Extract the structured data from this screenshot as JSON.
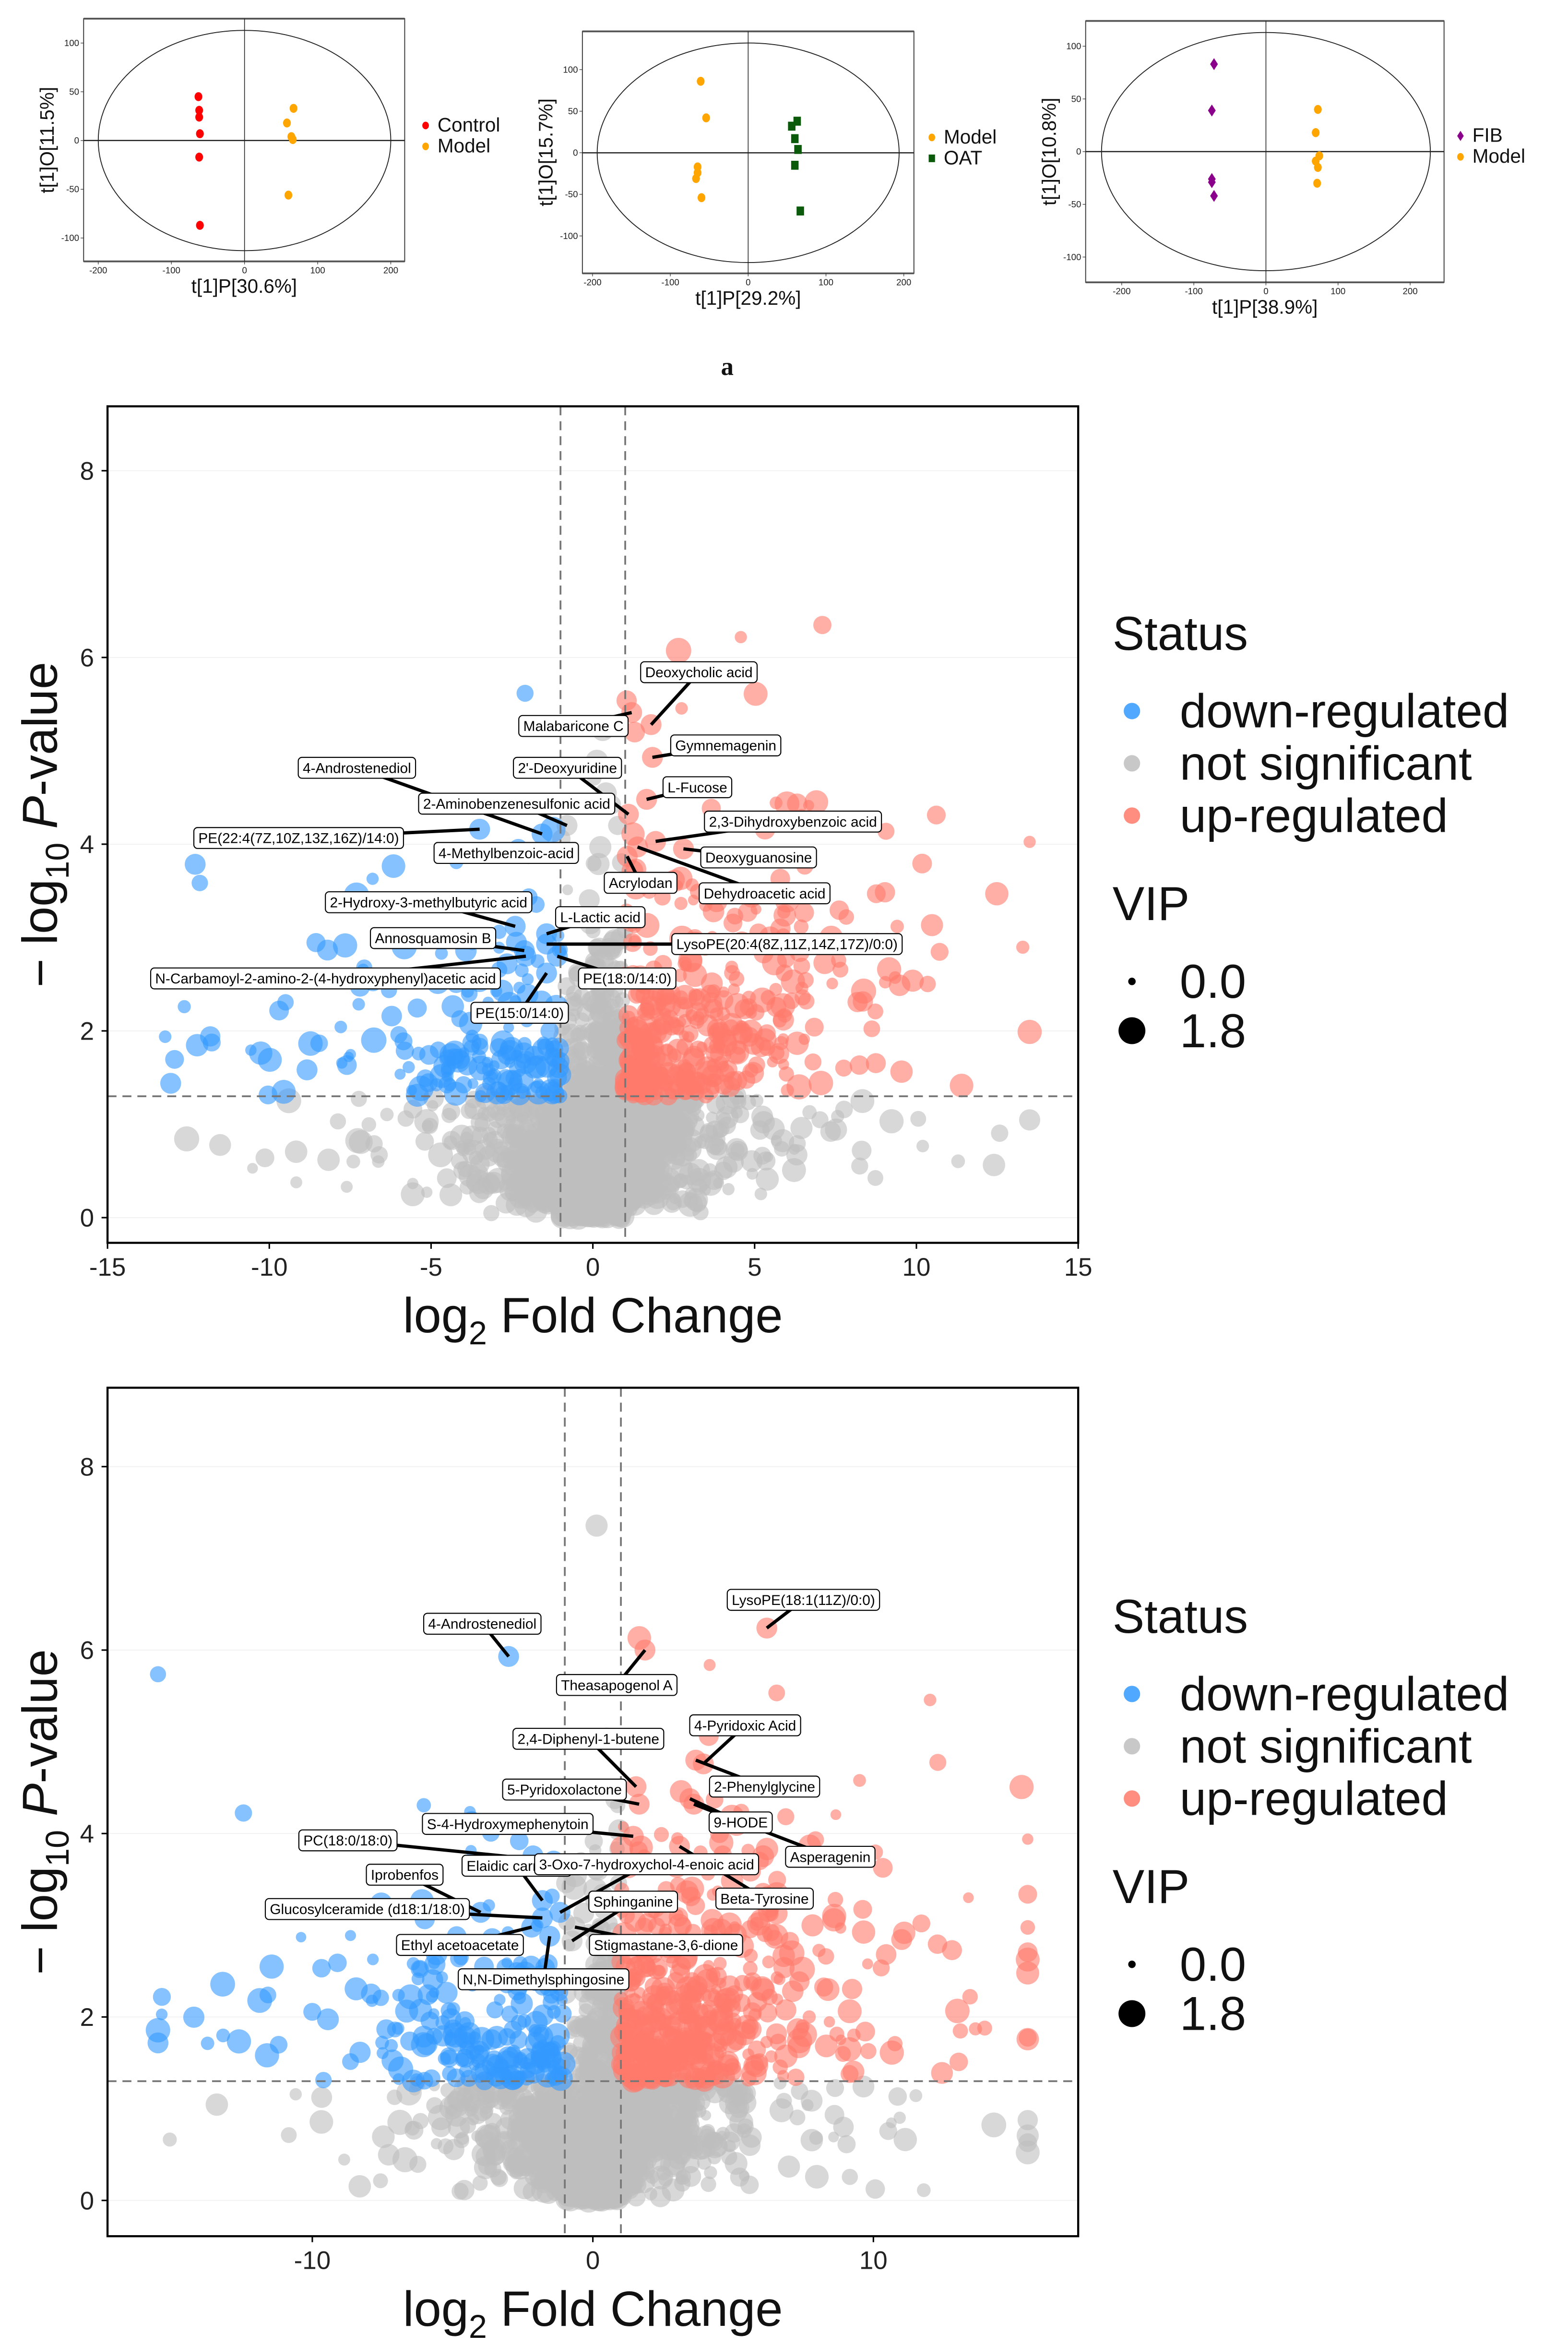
{
  "panel_letter": "a",
  "colors": {
    "control": "#FF0000",
    "model": "#FFA500",
    "oat": "#0B5A0B",
    "fib": "#8B008B",
    "down": "#3399FF",
    "up": "#FF7A6B",
    "ns": "#BEBEBE"
  },
  "chart_data": [
    {
      "type": "scatter",
      "title": "",
      "xlabel": "t[1]P[30.6%]",
      "ylabel": "t[1]O[11.5%]",
      "xlim": [
        -220,
        219
      ],
      "ylim": [
        -124,
        125
      ],
      "xticks": [
        -200,
        -100,
        0,
        100,
        200
      ],
      "yticks": [
        -100,
        -50,
        0,
        50,
        100
      ],
      "ellipse": {
        "rx": 200,
        "ry": 113
      },
      "legend_position": "right",
      "series": [
        {
          "name": "Control",
          "color_key": "control",
          "marker": "circle",
          "points": [
            [
              -63,
              45
            ],
            [
              -62,
              31
            ],
            [
              -62,
              24
            ],
            [
              -61,
              7
            ],
            [
              -62,
              -17
            ],
            [
              -61,
              -87
            ]
          ]
        },
        {
          "name": "Model",
          "color_key": "model",
          "marker": "circle",
          "points": [
            [
              67,
              33
            ],
            [
              58,
              18
            ],
            [
              64,
              4
            ],
            [
              66,
              1
            ],
            [
              60,
              -56
            ]
          ]
        }
      ]
    },
    {
      "type": "scatter",
      "title": "",
      "xlabel": "t[1]P[29.2%]",
      "ylabel": "t[1]O[15.7%]",
      "xlim": [
        -213,
        213
      ],
      "ylim": [
        -145,
        146
      ],
      "xticks": [
        -200,
        -100,
        0,
        100,
        200
      ],
      "yticks": [
        -100,
        -50,
        0,
        50,
        100
      ],
      "ellipse": {
        "rx": 194,
        "ry": 132
      },
      "legend_position": "right",
      "series": [
        {
          "name": "Model",
          "color_key": "model",
          "marker": "circle",
          "points": [
            [
              -61,
              86
            ],
            [
              -54,
              42
            ],
            [
              -65,
              -17
            ],
            [
              -65,
              -24
            ],
            [
              -67,
              -31
            ],
            [
              -60,
              -54
            ]
          ]
        },
        {
          "name": "OAT",
          "color_key": "oat",
          "marker": "square",
          "points": [
            [
              63,
              38
            ],
            [
              56,
              32
            ],
            [
              60,
              17
            ],
            [
              64,
              4
            ],
            [
              60,
              -15
            ],
            [
              67,
              -70
            ]
          ]
        }
      ]
    },
    {
      "type": "scatter",
      "title": "",
      "xlabel": "t[1]P[38.9%]",
      "ylabel": "t[1]O[10.8%]",
      "xlim": [
        -250,
        247
      ],
      "ylim": [
        -124,
        124
      ],
      "xticks": [
        -200,
        -100,
        0,
        100,
        200
      ],
      "yticks": [
        -100,
        -50,
        0,
        50,
        100
      ],
      "ellipse": {
        "rx": 228,
        "ry": 113
      },
      "legend_position": "right",
      "series": [
        {
          "name": "FIB",
          "color_key": "fib",
          "marker": "diamond",
          "points": [
            [
              -72,
              83
            ],
            [
              -75,
              39
            ],
            [
              -75,
              -26
            ],
            [
              -75,
              -29
            ],
            [
              -72,
              -42
            ]
          ]
        },
        {
          "name": "Model",
          "color_key": "model",
          "marker": "circle",
          "points": [
            [
              72,
              40
            ],
            [
              69,
              18
            ],
            [
              74,
              -4
            ],
            [
              69,
              -9
            ],
            [
              72,
              -15
            ],
            [
              71,
              -30
            ]
          ]
        }
      ]
    },
    {
      "type": "scatter",
      "title": "",
      "xlabel_parts": [
        "log",
        "2",
        " Fold Change"
      ],
      "ylabel_parts": [
        "− log",
        "10",
        " ",
        "P",
        "-value"
      ],
      "xlim": [
        -15,
        15
      ],
      "ylim": [
        -0.27,
        8.69
      ],
      "xticks": [
        -15,
        -10,
        -5,
        0,
        5,
        10,
        15
      ],
      "yticks": [
        0,
        2,
        4,
        6,
        8
      ],
      "fc_threshold": 1,
      "p_threshold_log": 1.3,
      "legend": {
        "status_title": "Status",
        "status": [
          "down-regulated",
          "not significant",
          "up-regulated"
        ],
        "vip_title": "VIP",
        "vip": [
          "0.0",
          "1.8"
        ]
      },
      "legend_position": "right",
      "labeled_points": [
        {
          "name": "Deoxycholic acid",
          "x": 1.8,
          "y": 5.28
        },
        {
          "name": "Malabaricone C",
          "x": 1.2,
          "y": 5.41
        },
        {
          "name": "Gymnemagenin",
          "x": 1.84,
          "y": 4.93
        },
        {
          "name": "2'-Deoxyuridine",
          "x": 1.1,
          "y": 4.32
        },
        {
          "name": "L-Fucose",
          "x": 1.66,
          "y": 4.48
        },
        {
          "name": "4-Androstenediol",
          "x": -1.57,
          "y": 4.11
        },
        {
          "name": "2-Aminobenzenesulfonic acid",
          "x": -0.8,
          "y": 4.2
        },
        {
          "name": "2,3-Dihydroxybenzoic acid",
          "x": 1.94,
          "y": 4.03
        },
        {
          "name": "PE(22:4(7Z,10Z,13Z,16Z)/14:0)",
          "x": -3.5,
          "y": 4.16
        },
        {
          "name": "4-Methylbenzoic-acid",
          "x": -2.0,
          "y": 3.9
        },
        {
          "name": "Deoxyguanosine",
          "x": 2.8,
          "y": 3.95
        },
        {
          "name": "Acrylodan",
          "x": 1.06,
          "y": 3.87
        },
        {
          "name": "Dehydroacetic acid",
          "x": 1.38,
          "y": 3.97
        },
        {
          "name": "2-Hydroxy-3-methylbutyric acid",
          "x": -2.4,
          "y": 3.12
        },
        {
          "name": "L-Lactic acid",
          "x": -1.43,
          "y": 3.04
        },
        {
          "name": "Annosquamosin B",
          "x": -2.12,
          "y": 2.86
        },
        {
          "name": "LysoPE(20:4(8Z,11Z,14Z,17Z)/0:0)",
          "x": -1.43,
          "y": 2.93
        },
        {
          "name": "N-Carbamoyl-2-amino-2-(4-hydroxyphenyl)acetic acid",
          "x": -2.07,
          "y": 2.8
        },
        {
          "name": "PE(18:0/14:0)",
          "x": -1.1,
          "y": 2.8
        },
        {
          "name": "PE(15:0/14:0)",
          "x": -1.43,
          "y": 2.62
        }
      ]
    },
    {
      "type": "scatter",
      "title": "",
      "xlabel_parts": [
        "log",
        "2",
        " Fold Change"
      ],
      "ylabel_parts": [
        "− log",
        "10",
        " ",
        "P",
        "-value"
      ],
      "xlim": [
        -17.3,
        17.3
      ],
      "ylim": [
        -0.39,
        8.86
      ],
      "xticks": [
        -10,
        0,
        10
      ],
      "yticks": [
        0,
        2,
        4,
        6,
        8
      ],
      "fc_threshold": 1,
      "p_threshold_log": 1.3,
      "legend": {
        "status_title": "Status",
        "status": [
          "down-regulated",
          "not significant",
          "up-regulated"
        ],
        "vip_title": "VIP",
        "vip": [
          "0.0",
          "1.8"
        ]
      },
      "legend_position": "right",
      "labeled_points": [
        {
          "name": "LysoPE(18:1(11Z)/0:0)",
          "x": 6.2,
          "y": 6.24
        },
        {
          "name": "4-Androstenediol",
          "x": -3.0,
          "y": 5.93
        },
        {
          "name": "Theasapogenol A",
          "x": 1.86,
          "y": 6.0
        },
        {
          "name": "4-Pyridoxic Acid",
          "x": 3.94,
          "y": 4.76
        },
        {
          "name": "2,4-Diphenyl-1-butene",
          "x": 1.54,
          "y": 4.51
        },
        {
          "name": "2-Phenylglycine",
          "x": 3.67,
          "y": 4.8
        },
        {
          "name": "5-Pyridoxolactone",
          "x": 1.65,
          "y": 4.32
        },
        {
          "name": "9-HODE",
          "x": 3.46,
          "y": 4.38
        },
        {
          "name": "S-4-Hydroxymephenytoin",
          "x": 1.44,
          "y": 3.97
        },
        {
          "name": "PC(18:0/18:0)",
          "x": -1.4,
          "y": 3.7
        },
        {
          "name": "Asperagenin",
          "x": 3.6,
          "y": 4.32
        },
        {
          "name": "Elaidic carnitine",
          "x": -1.8,
          "y": 3.27
        },
        {
          "name": "3-Oxo-7-hydroxychol-4-enoic acid",
          "x": -1.17,
          "y": 3.14
        },
        {
          "name": "Iprobenfos",
          "x": -4.0,
          "y": 3.14
        },
        {
          "name": "Beta-Tyrosine",
          "x": 3.09,
          "y": 3.86
        },
        {
          "name": "Sphinganine",
          "x": -0.74,
          "y": 2.83
        },
        {
          "name": "Glucosylceramide (d18:1/18:0)",
          "x": -1.8,
          "y": 3.08
        },
        {
          "name": "Ethyl acetoacetate",
          "x": -2.18,
          "y": 2.98
        },
        {
          "name": "Stigmastane-3,6-dione",
          "x": -0.64,
          "y": 2.98
        },
        {
          "name": "N,N-Dimethylsphingosine",
          "x": -1.54,
          "y": 2.88
        }
      ]
    }
  ]
}
